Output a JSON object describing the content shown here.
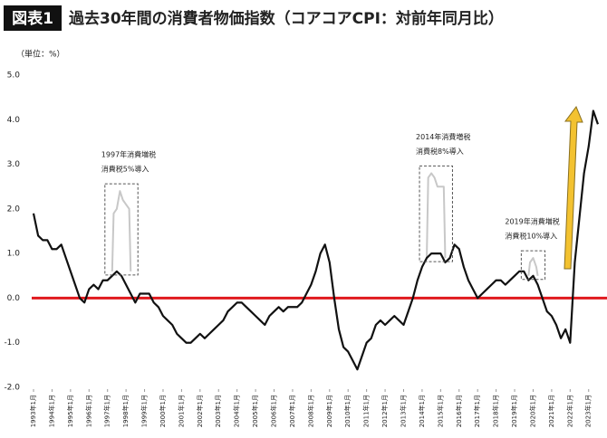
{
  "chart_data": {
    "type": "line",
    "title_tag": "図表1",
    "title": "過去30年間の消費者物価指数（コアコアCPI：対前年同月比）",
    "unit_label": "（単位：%）",
    "xlim": [
      1993,
      2023.6
    ],
    "ylim": [
      -2,
      5
    ],
    "yticks": [
      {
        "value": 5,
        "label": "5.0"
      },
      {
        "value": 4,
        "label": "4.0"
      },
      {
        "value": 3,
        "label": "3.0"
      },
      {
        "value": 2,
        "label": "2.0"
      },
      {
        "value": 1,
        "label": "1.0"
      },
      {
        "value": 0,
        "label": "0.0"
      },
      {
        "value": -1,
        "label": "-1.0"
      },
      {
        "value": -2,
        "label": "-2.0"
      }
    ],
    "xticks": [
      {
        "value": 1993,
        "label": "1993年1月"
      },
      {
        "value": 1994,
        "label": "1994年1月"
      },
      {
        "value": 1995,
        "label": "1995年1月"
      },
      {
        "value": 1996,
        "label": "1996年1月"
      },
      {
        "value": 1997,
        "label": "1997年1月"
      },
      {
        "value": 1998,
        "label": "1998年1月"
      },
      {
        "value": 1999,
        "label": "1999年1月"
      },
      {
        "value": 2000,
        "label": "2000年1月"
      },
      {
        "value": 2001,
        "label": "2001年1月"
      },
      {
        "value": 2002,
        "label": "2002年1月"
      },
      {
        "value": 2003,
        "label": "2003年1月"
      },
      {
        "value": 2004,
        "label": "2004年1月"
      },
      {
        "value": 2005,
        "label": "2005年1月"
      },
      {
        "value": 2006,
        "label": "2006年1月"
      },
      {
        "value": 2007,
        "label": "2007年1月"
      },
      {
        "value": 2008,
        "label": "2008年1月"
      },
      {
        "value": 2009,
        "label": "2009年1月"
      },
      {
        "value": 2010,
        "label": "2010年1月"
      },
      {
        "value": 2011,
        "label": "2011年1月"
      },
      {
        "value": 2012,
        "label": "2012年1月"
      },
      {
        "value": 2013,
        "label": "2013年1月"
      },
      {
        "value": 2014,
        "label": "2014年1月"
      },
      {
        "value": 2015,
        "label": "2015年1月"
      },
      {
        "value": 2016,
        "label": "2016年1月"
      },
      {
        "value": 2017,
        "label": "2017年1月"
      },
      {
        "value": 2018,
        "label": "2018年1月"
      },
      {
        "value": 2019,
        "label": "2019年1月"
      },
      {
        "value": 2020,
        "label": "2020年1月"
      },
      {
        "value": 2021,
        "label": "2021年1月"
      },
      {
        "value": 2022,
        "label": "2022年1月"
      },
      {
        "value": 2023,
        "label": "2023年1月"
      }
    ],
    "reference_line": {
      "value": 0,
      "color": "#e0191e"
    },
    "series": [
      {
        "color": "#111111",
        "x": [
          1993,
          1993.25,
          1993.5,
          1993.75,
          1994,
          1994.25,
          1994.5,
          1994.75,
          1995,
          1995.25,
          1995.5,
          1995.75,
          1996,
          1996.25,
          1996.5,
          1996.75,
          1997,
          1997.25,
          1997.5,
          1997.75,
          1998,
          1998.25,
          1998.5,
          1998.75,
          1999,
          1999.25,
          1999.5,
          1999.75,
          2000,
          2000.25,
          2000.5,
          2000.75,
          2001,
          2001.25,
          2001.5,
          2001.75,
          2002,
          2002.25,
          2002.5,
          2002.75,
          2003,
          2003.25,
          2003.5,
          2003.75,
          2004,
          2004.25,
          2004.5,
          2004.75,
          2005,
          2005.25,
          2005.5,
          2005.75,
          2006,
          2006.25,
          2006.5,
          2006.75,
          2007,
          2007.25,
          2007.5,
          2007.75,
          2008,
          2008.25,
          2008.5,
          2008.75,
          2009,
          2009.25,
          2009.5,
          2009.75,
          2010,
          2010.25,
          2010.5,
          2010.75,
          2011,
          2011.25,
          2011.5,
          2011.75,
          2012,
          2012.25,
          2012.5,
          2012.75,
          2013,
          2013.25,
          2013.5,
          2013.75,
          2014,
          2014.25,
          2014.5,
          2014.75,
          2015,
          2015.25,
          2015.5,
          2015.75,
          2016,
          2016.25,
          2016.5,
          2016.75,
          2017,
          2017.25,
          2017.5,
          2017.75,
          2018,
          2018.25,
          2018.5,
          2018.75,
          2019,
          2019.25,
          2019.5,
          2019.75,
          2020,
          2020.25,
          2020.5,
          2020.75,
          2021,
          2021.25,
          2021.5,
          2021.75,
          2022,
          2022.25,
          2022.5,
          2022.75,
          2023,
          2023.25,
          2023.5
        ],
        "values": [
          1.9,
          1.4,
          1.3,
          1.3,
          1.1,
          1.1,
          1.2,
          0.9,
          0.6,
          0.3,
          0.0,
          -0.1,
          0.2,
          0.3,
          0.2,
          0.4,
          0.4,
          0.5,
          0.6,
          0.5,
          0.3,
          0.1,
          -0.1,
          0.1,
          0.1,
          0.1,
          -0.1,
          -0.2,
          -0.4,
          -0.5,
          -0.6,
          -0.8,
          -0.9,
          -1.0,
          -1.0,
          -0.9,
          -0.8,
          -0.9,
          -0.8,
          -0.7,
          -0.6,
          -0.5,
          -0.3,
          -0.2,
          -0.1,
          -0.1,
          -0.2,
          -0.3,
          -0.4,
          -0.5,
          -0.6,
          -0.4,
          -0.3,
          -0.2,
          -0.3,
          -0.2,
          -0.2,
          -0.2,
          -0.1,
          0.1,
          0.3,
          0.6,
          1.0,
          1.2,
          0.8,
          0.0,
          -0.7,
          -1.1,
          -1.2,
          -1.4,
          -1.6,
          -1.3,
          -1.0,
          -0.9,
          -0.6,
          -0.5,
          -0.6,
          -0.5,
          -0.4,
          -0.5,
          -0.6,
          -0.3,
          0.0,
          0.4,
          0.7,
          0.9,
          1.0,
          1.0,
          1.0,
          0.8,
          0.9,
          1.2,
          1.1,
          0.7,
          0.4,
          0.2,
          0.0,
          0.1,
          0.2,
          0.3,
          0.4,
          0.4,
          0.3,
          0.4,
          0.5,
          0.6,
          0.6,
          0.4,
          0.5,
          0.3,
          0.0,
          -0.3,
          -0.4,
          -0.6,
          -0.9,
          -0.7,
          -1.0,
          0.8,
          1.8,
          2.8,
          3.4,
          4.2,
          3.9
        ]
      },
      {
        "color": "#c8c8c8",
        "x": [
          1997.25,
          1997.33,
          1997.5,
          1997.67,
          1997.83,
          1998,
          1998.17,
          1998.25
        ],
        "values": [
          0.6,
          1.9,
          2.0,
          2.4,
          2.2,
          2.1,
          2.0,
          0.6
        ]
      },
      {
        "color": "#c8c8c8",
        "x": [
          2014.25,
          2014.33,
          2014.5,
          2014.67,
          2014.83,
          2015,
          2015.17,
          2015.25
        ],
        "values": [
          0.9,
          2.7,
          2.8,
          2.7,
          2.5,
          2.5,
          2.5,
          0.9
        ]
      },
      {
        "color": "#c8c8c8",
        "x": [
          2019.75,
          2019.83,
          2020,
          2020.17,
          2020.25
        ],
        "values": [
          0.5,
          0.8,
          0.9,
          0.7,
          0.5
        ]
      }
    ],
    "annotations": [
      {
        "series": 1,
        "lines": [
          "1997年消費増税",
          "消費税5%導入"
        ]
      },
      {
        "series": 2,
        "lines": [
          "2014年消費増税",
          "消費税8%導入"
        ]
      },
      {
        "series": 3,
        "lines": [
          "2019年消費増税",
          "消費税10%導入"
        ]
      }
    ]
  }
}
